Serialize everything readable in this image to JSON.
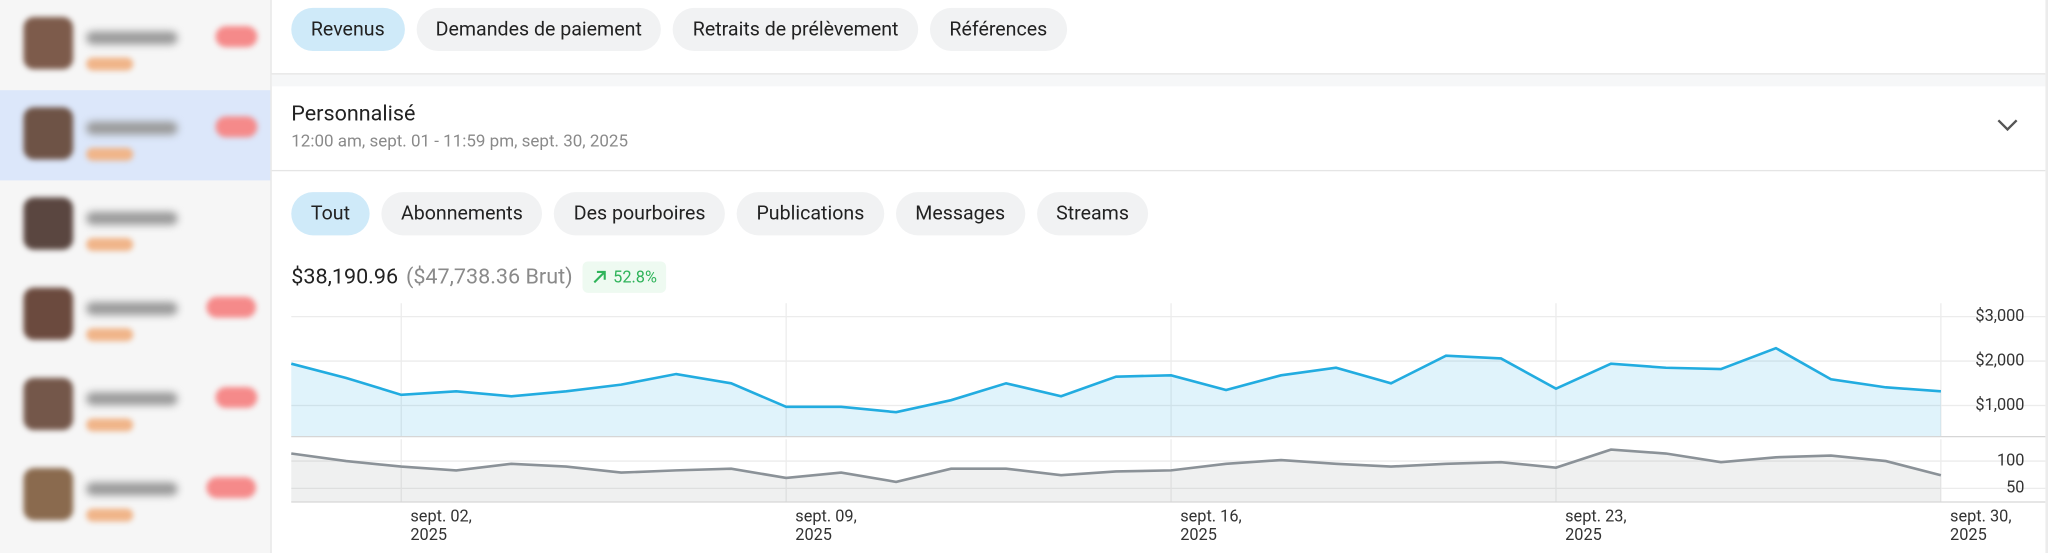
{
  "top_tabs": [
    "Revenus",
    "Demandes de paiement",
    "Retraits de prélèvement",
    "Références"
  ],
  "filter": {
    "title": "Personnalisé",
    "range": "12:00 am, sept. 01 - 11:59 pm, sept. 30, 2025"
  },
  "category_tabs": [
    "Tout",
    "Abonnements",
    "Des pourboires",
    "Publications",
    "Messages",
    "Streams"
  ],
  "summary": {
    "net": "$38,190.96",
    "gross": "($47,738.36 Brut)",
    "change": "52.8%"
  },
  "chart_data": [
    {
      "type": "area",
      "color": "#22ace0",
      "categories": [
        null,
        null,
        "sept. 02, 2025",
        null,
        null,
        null,
        null,
        null,
        null,
        "sept. 09, 2025",
        null,
        null,
        null,
        null,
        null,
        null,
        "sept. 16, 2025",
        null,
        null,
        null,
        null,
        null,
        null,
        "sept. 23, 2025",
        null,
        null,
        null,
        null,
        null,
        null,
        "sept. 30, 2025"
      ],
      "values": [
        1940,
        1620,
        1240,
        1320,
        1210,
        1320,
        1470,
        1710,
        1500,
        970,
        970,
        850,
        1120,
        1500,
        1210,
        1650,
        1680,
        1350,
        1680,
        1850,
        1500,
        2120,
        2060,
        1380,
        1940,
        1850,
        1820,
        2290,
        1590,
        1410,
        1320
      ],
      "ylim": [
        300,
        3300
      ],
      "yticks": [
        {
          "value": 1000,
          "label": "$1,000"
        },
        {
          "value": 2000,
          "label": "$2,000"
        },
        {
          "value": 3000,
          "label": "$3,000"
        }
      ],
      "grid": true
    },
    {
      "type": "area",
      "color": "#8b9298",
      "categories": [
        null,
        null,
        "sept. 02, 2025",
        null,
        null,
        null,
        null,
        null,
        null,
        "sept. 09, 2025",
        null,
        null,
        null,
        null,
        null,
        null,
        "sept. 16, 2025",
        null,
        null,
        null,
        null,
        null,
        null,
        "sept. 23, 2025",
        null,
        null,
        null,
        null,
        null,
        null,
        "sept. 30, 2025"
      ],
      "values": [
        114,
        100,
        90,
        83,
        95,
        90,
        79,
        83,
        86,
        69,
        79,
        62,
        86,
        86,
        74,
        81,
        83,
        95,
        102,
        95,
        90,
        95,
        98,
        88,
        121,
        114,
        98,
        107,
        110,
        100,
        74
      ],
      "ylim": [
        25,
        140
      ],
      "yticks": [
        50,
        100
      ],
      "grid": true
    }
  ]
}
